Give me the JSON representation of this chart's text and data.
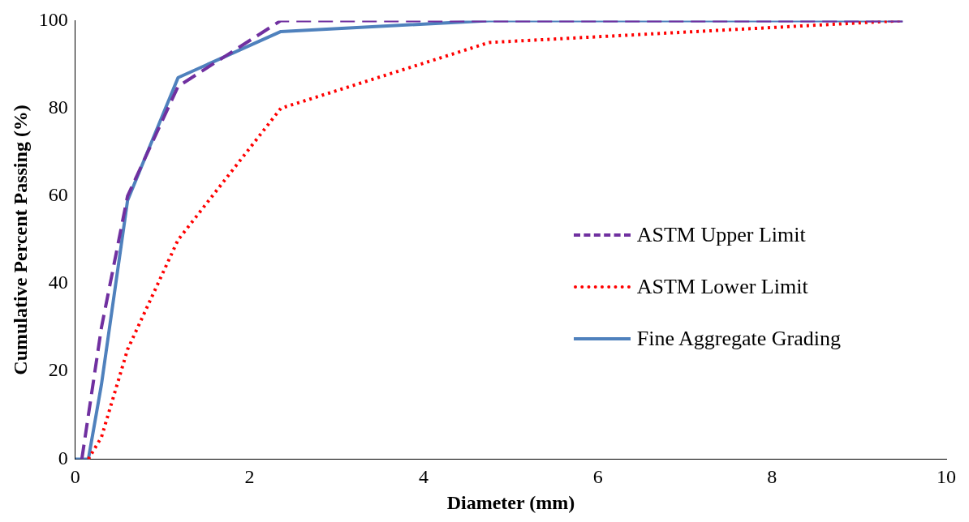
{
  "chart_data": {
    "type": "line",
    "xlabel": "Diameter (mm)",
    "ylabel": "Cumulative Percent Passing (%)",
    "xlim": [
      0,
      10
    ],
    "xticks": [
      0,
      2,
      4,
      6,
      8,
      10
    ],
    "ylim": [
      0,
      100
    ],
    "yticks": [
      0,
      20,
      40,
      60,
      80,
      100
    ],
    "grid": false,
    "legend": "right",
    "marker": "none",
    "series": [
      {
        "name": "ASTM Upper Limit",
        "color": "#7030a0",
        "line_style": "dashed",
        "x": [
          0.075,
          0.15,
          0.3,
          0.6,
          1.18,
          2.36,
          4.75,
          9.5
        ],
        "values": [
          0,
          10,
          30,
          60,
          85,
          100,
          100,
          100
        ]
      },
      {
        "name": "ASTM Lower Limit",
        "color": "#ff0000",
        "line_style": "dotted",
        "x": [
          0.15,
          0.3,
          0.6,
          1.18,
          2.36,
          4.75,
          9.5
        ],
        "values": [
          0,
          5,
          25,
          50,
          80,
          95,
          100
        ]
      },
      {
        "name": "Fine Aggregate Grading",
        "color": "#4f81bd",
        "line_style": "solid",
        "x": [
          0,
          0.15,
          0.3,
          0.6,
          1.18,
          2.36,
          4.75,
          9.5
        ],
        "values": [
          0,
          0,
          17,
          59,
          87,
          97.5,
          100,
          100
        ]
      }
    ]
  }
}
